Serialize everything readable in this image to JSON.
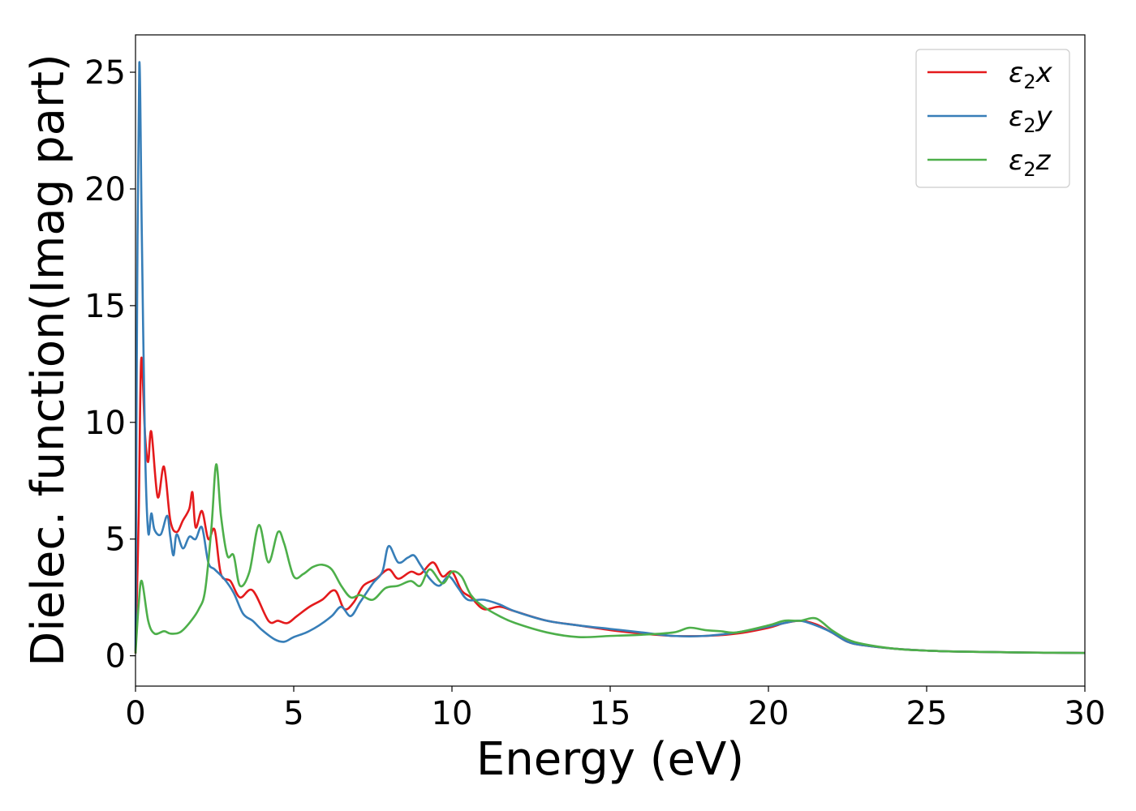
{
  "chart_data": {
    "type": "line",
    "title": "",
    "xlabel": "Energy (eV)",
    "ylabel": "Dielec. function(Imag part)",
    "xlim": [
      0,
      30
    ],
    "ylim": [
      -1.3,
      26.6
    ],
    "xticks": [
      0,
      5,
      10,
      15,
      20,
      25,
      30
    ],
    "yticks": [
      0,
      5,
      10,
      15,
      20,
      25
    ],
    "grid": false,
    "legend_position": "top-right",
    "series": [
      {
        "name": "ε2x",
        "legend_base": "ε",
        "legend_sub": "2",
        "legend_var": "x",
        "color": "#e41a1c",
        "x": [
          0,
          0.1,
          0.18,
          0.3,
          0.4,
          0.5,
          0.7,
          0.9,
          1.1,
          1.3,
          1.5,
          1.7,
          1.8,
          1.9,
          2.1,
          2.3,
          2.5,
          2.7,
          3.0,
          3.3,
          3.7,
          4.2,
          4.5,
          4.8,
          5.1,
          5.5,
          5.9,
          6.3,
          6.6,
          6.9,
          7.2,
          7.6,
          8.0,
          8.3,
          8.7,
          9.0,
          9.4,
          9.7,
          10.0,
          10.3,
          10.6,
          11.0,
          11.5,
          12,
          13,
          14,
          15,
          16,
          17,
          18,
          19,
          20,
          20.5,
          21,
          21.5,
          22,
          22.5,
          23,
          24,
          25,
          26,
          27,
          28,
          29,
          30
        ],
        "y": [
          0.1,
          6.0,
          12.7,
          9.5,
          8.3,
          9.6,
          6.8,
          8.1,
          5.8,
          5.3,
          5.8,
          6.3,
          7.0,
          5.5,
          6.2,
          5.0,
          5.4,
          3.5,
          3.2,
          2.5,
          2.8,
          1.5,
          1.5,
          1.4,
          1.7,
          2.1,
          2.4,
          2.8,
          2.0,
          2.3,
          3.0,
          3.3,
          3.7,
          3.3,
          3.6,
          3.5,
          4.0,
          3.4,
          3.6,
          2.8,
          2.5,
          2.0,
          2.1,
          1.9,
          1.5,
          1.3,
          1.1,
          0.95,
          0.85,
          0.85,
          0.95,
          1.2,
          1.4,
          1.5,
          1.35,
          1.0,
          0.6,
          0.45,
          0.3,
          0.22,
          0.18,
          0.16,
          0.14,
          0.13,
          0.12
        ]
      },
      {
        "name": "ε2y",
        "legend_base": "ε",
        "legend_sub": "2",
        "legend_var": "y",
        "color": "#377eb8",
        "x": [
          0,
          0.05,
          0.12,
          0.2,
          0.3,
          0.4,
          0.5,
          0.6,
          0.8,
          1.0,
          1.1,
          1.2,
          1.3,
          1.5,
          1.7,
          1.9,
          2.1,
          2.3,
          2.5,
          2.8,
          3.1,
          3.4,
          3.7,
          4.0,
          4.4,
          4.7,
          5.0,
          5.4,
          5.8,
          6.2,
          6.5,
          6.8,
          7.1,
          7.5,
          7.8,
          8.0,
          8.3,
          8.6,
          8.8,
          9.0,
          9.3,
          9.6,
          9.9,
          10.2,
          10.5,
          11.0,
          11.5,
          12,
          13,
          14,
          15,
          16,
          17,
          18,
          19,
          20,
          20.5,
          21,
          21.5,
          22,
          22.5,
          23,
          24,
          25,
          26,
          27,
          28,
          29,
          30
        ],
        "y": [
          0.2,
          15,
          25.4,
          18,
          9.0,
          5.3,
          6.1,
          5.4,
          5.2,
          6.0,
          5.1,
          4.3,
          5.2,
          4.6,
          5.1,
          5.0,
          5.5,
          4.0,
          3.7,
          3.3,
          2.7,
          1.8,
          1.5,
          1.1,
          0.7,
          0.6,
          0.8,
          1.0,
          1.3,
          1.7,
          2.1,
          1.7,
          2.3,
          3.1,
          3.6,
          4.7,
          4.0,
          4.2,
          4.3,
          3.9,
          3.3,
          3.0,
          3.4,
          2.9,
          2.4,
          2.4,
          2.2,
          1.9,
          1.5,
          1.3,
          1.15,
          1.0,
          0.85,
          0.85,
          1.0,
          1.25,
          1.4,
          1.5,
          1.3,
          1.0,
          0.6,
          0.45,
          0.3,
          0.22,
          0.18,
          0.16,
          0.14,
          0.13,
          0.12
        ]
      },
      {
        "name": "ε2z",
        "legend_base": "ε",
        "legend_sub": "2",
        "legend_var": "z",
        "color": "#4daf4a",
        "x": [
          0,
          0.1,
          0.2,
          0.4,
          0.6,
          0.9,
          1.1,
          1.4,
          1.7,
          2.0,
          2.2,
          2.4,
          2.55,
          2.7,
          2.9,
          3.1,
          3.3,
          3.6,
          3.9,
          4.2,
          4.5,
          4.7,
          5.0,
          5.3,
          5.6,
          5.9,
          6.2,
          6.5,
          6.8,
          7.1,
          7.5,
          7.9,
          8.3,
          8.7,
          9.0,
          9.3,
          9.7,
          10.0,
          10.3,
          10.6,
          11.0,
          11.5,
          12,
          13,
          14,
          15,
          16,
          17,
          17.5,
          18,
          18.5,
          19,
          20,
          20.5,
          21,
          21.5,
          22,
          22.5,
          23,
          24,
          25,
          26,
          27,
          28,
          29,
          30
        ],
        "y": [
          0.1,
          2.2,
          3.2,
          1.5,
          0.95,
          1.05,
          0.95,
          1.0,
          1.4,
          2.0,
          2.8,
          5.5,
          8.2,
          6.0,
          4.3,
          4.3,
          3.0,
          3.6,
          5.6,
          4.0,
          5.3,
          4.8,
          3.4,
          3.5,
          3.8,
          3.9,
          3.7,
          3.0,
          2.5,
          2.6,
          2.4,
          2.9,
          3.0,
          3.2,
          3.0,
          3.7,
          3.1,
          3.6,
          3.4,
          2.6,
          2.1,
          1.7,
          1.4,
          1.0,
          0.8,
          0.85,
          0.9,
          1.0,
          1.2,
          1.1,
          1.05,
          1.0,
          1.3,
          1.5,
          1.5,
          1.6,
          1.1,
          0.7,
          0.5,
          0.3,
          0.22,
          0.18,
          0.16,
          0.14,
          0.13,
          0.12
        ]
      }
    ]
  }
}
